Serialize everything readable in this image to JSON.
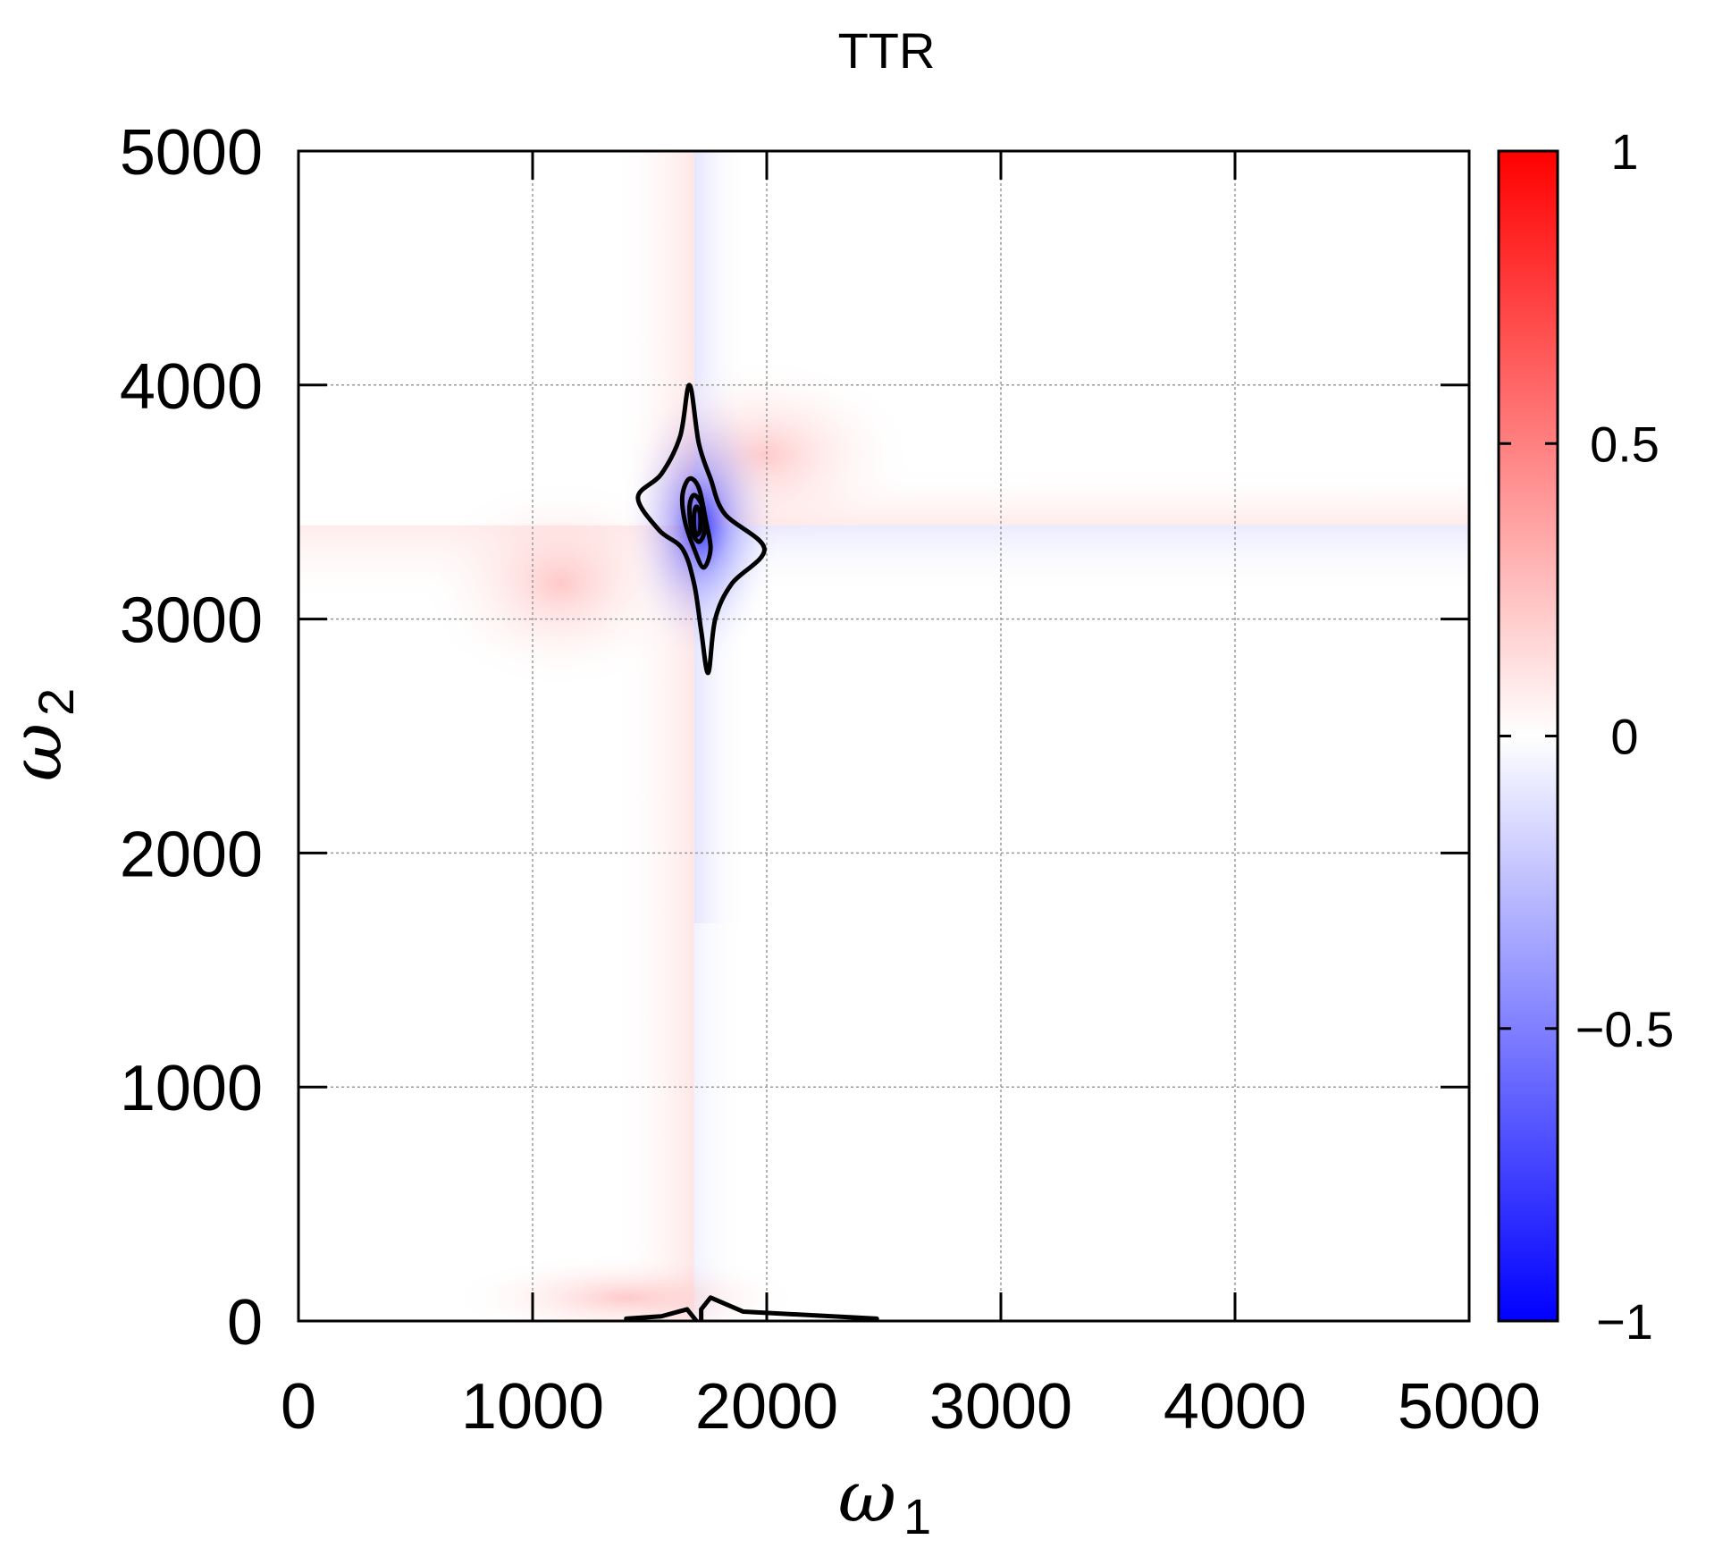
{
  "chart_data": {
    "type": "heatmap",
    "title": "TTR",
    "xlabel": "ω",
    "xlabel_sub": "1",
    "ylabel": "ω",
    "ylabel_sub": "2",
    "xlim": [
      0,
      5000
    ],
    "ylim": [
      0,
      5000
    ],
    "x_ticks": [
      0,
      1000,
      2000,
      3000,
      4000,
      5000
    ],
    "y_ticks": [
      0,
      1000,
      2000,
      3000,
      4000,
      5000
    ],
    "x_tick_labels": [
      "0",
      "1000",
      "2000",
      "3000",
      "4000",
      "5000"
    ],
    "y_tick_labels": [
      "0",
      "1000",
      "2000",
      "3000",
      "4000",
      "5000"
    ],
    "grid": true,
    "colorbar": {
      "range": [
        -1,
        1
      ],
      "ticks": [
        1,
        0.5,
        0,
        -0.5,
        -1
      ],
      "tick_labels": [
        "1",
        "0.5",
        "0",
        "−0.5",
        "−1"
      ],
      "colors": {
        "min": "#0000ff",
        "mid": "#ffffff",
        "max": "#ff0000"
      }
    },
    "peaks": [
      {
        "x": 1720,
        "y": 3400,
        "value": -0.9,
        "description": "negative peak"
      }
    ],
    "contours": [
      {
        "level": -0.1,
        "points": [
          [
            1670,
            4000
          ],
          [
            1710,
            3750
          ],
          [
            1760,
            3600
          ],
          [
            1820,
            3450
          ],
          [
            1990,
            3300
          ],
          [
            1850,
            3150
          ],
          [
            1780,
            3000
          ],
          [
            1750,
            2770
          ],
          [
            1720,
            2950
          ],
          [
            1690,
            3150
          ],
          [
            1640,
            3300
          ],
          [
            1540,
            3380
          ],
          [
            1450,
            3520
          ],
          [
            1550,
            3620
          ],
          [
            1630,
            3780
          ]
        ]
      },
      {
        "level": -0.3,
        "points": [
          [
            1670,
            3600
          ],
          [
            1710,
            3560
          ],
          [
            1740,
            3420
          ],
          [
            1760,
            3300
          ],
          [
            1730,
            3220
          ],
          [
            1690,
            3300
          ],
          [
            1650,
            3420
          ],
          [
            1640,
            3530
          ]
        ]
      },
      {
        "level": -0.5,
        "points": [
          [
            1690,
            3530
          ],
          [
            1725,
            3480
          ],
          [
            1735,
            3380
          ],
          [
            1710,
            3330
          ],
          [
            1680,
            3380
          ],
          [
            1670,
            3480
          ]
        ]
      },
      {
        "level": -0.7,
        "points": [
          [
            1700,
            3480
          ],
          [
            1715,
            3450
          ],
          [
            1715,
            3380
          ],
          [
            1700,
            3360
          ],
          [
            1690,
            3390
          ],
          [
            1690,
            3450
          ]
        ]
      }
    ],
    "baseline_contours": [
      {
        "level": -0.1,
        "points": [
          [
            1720,
            0
          ],
          [
            1720,
            50
          ],
          [
            1760,
            100
          ],
          [
            1900,
            40
          ],
          [
            2470,
            10
          ],
          [
            2470,
            0
          ]
        ]
      },
      {
        "level": 0.1,
        "points": [
          [
            1400,
            0
          ],
          [
            1400,
            10
          ],
          [
            1550,
            20
          ],
          [
            1660,
            50
          ],
          [
            1700,
            0
          ]
        ]
      }
    ]
  }
}
